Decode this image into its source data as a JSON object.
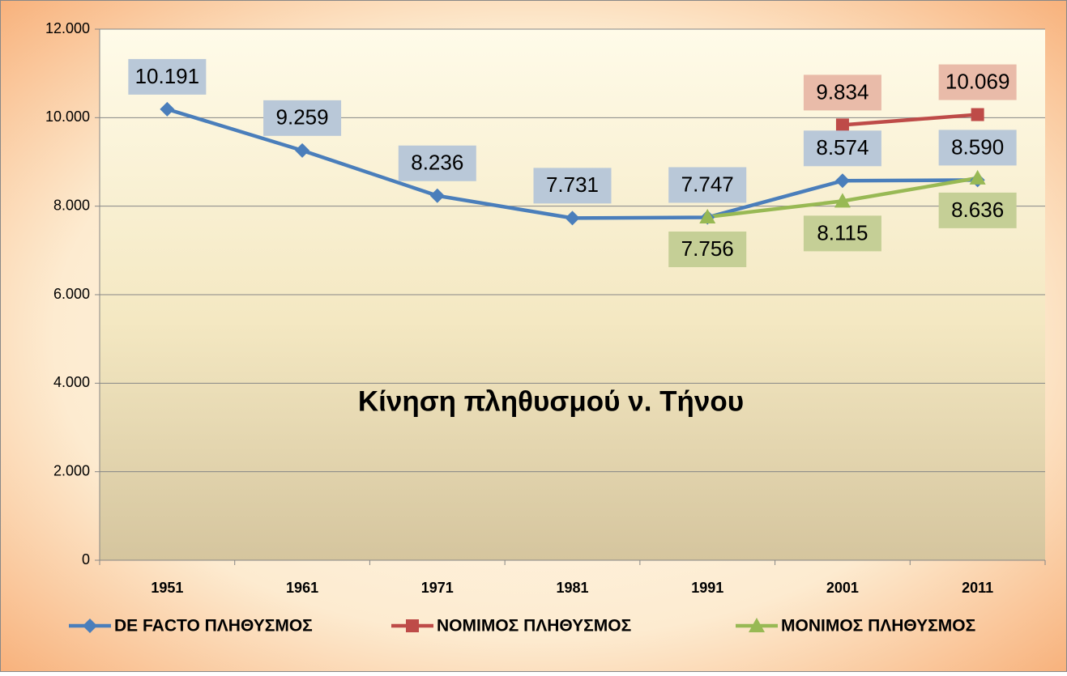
{
  "chart_data": {
    "type": "line",
    "title": "Κίνηση πληθυσμού ν. Τήνου",
    "categories": [
      "1951",
      "1961",
      "1971",
      "1981",
      "1991",
      "2001",
      "2011"
    ],
    "series": [
      {
        "name": "DE FACTO ΠΛΗΘΥΣΜΟΣ",
        "color": "#4a7ebb",
        "label_color": "#b9c8d8",
        "values": [
          10191,
          9259,
          8236,
          7731,
          7747,
          8574,
          8590
        ],
        "value_labels": [
          "10.191",
          "9.259",
          "8.236",
          "7.731",
          "7.747",
          "8.574",
          "8.590"
        ]
      },
      {
        "name": "ΝΟΜΙΜΟΣ ΠΛΗΘΥΣΜΟΣ",
        "color": "#be4b48",
        "label_color": "#e9bba9",
        "values": [
          null,
          null,
          null,
          null,
          null,
          9834,
          10069
        ],
        "value_labels": [
          null,
          null,
          null,
          null,
          null,
          "9.834",
          "10.069"
        ]
      },
      {
        "name": "ΜΟΝΙΜΟΣ ΠΛΗΘΥΣΜΟΣ",
        "color": "#98b954",
        "label_color": "#c5cf96",
        "values": [
          null,
          null,
          null,
          null,
          7756,
          8115,
          8636
        ],
        "value_labels": [
          null,
          null,
          null,
          null,
          "7.756",
          "8.115",
          "8.636"
        ]
      }
    ],
    "ylim": [
      0,
      12000
    ],
    "yticks": [
      0,
      {
        "value": 2000,
        "label": "2.000"
      },
      {
        "value": 4000,
        "label": "4.000"
      },
      {
        "value": 6000,
        "label": "6.000"
      },
      {
        "value": 8000,
        "label": "8.000"
      },
      {
        "value": 10000,
        "label": "10.000"
      },
      {
        "value": 12000,
        "label": "12.000"
      }
    ],
    "grid": true,
    "legend": "bottom"
  }
}
